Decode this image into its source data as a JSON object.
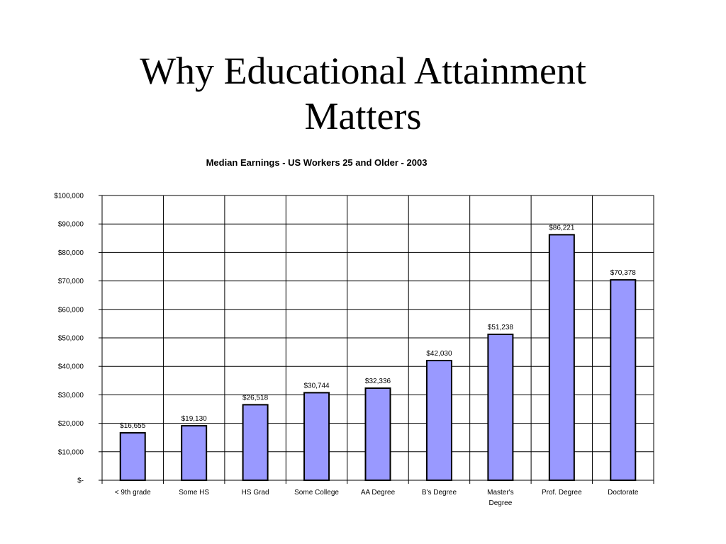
{
  "slide": {
    "title_line1": "Why Educational Attainment",
    "title_line2": "Matters"
  },
  "chart_data": {
    "type": "bar",
    "title": "Median Earnings - US Workers 25 and Older - 2003",
    "xlabel": "",
    "ylabel": "",
    "categories": [
      "< 9th grade",
      "Some HS",
      "HS Grad",
      "Some College",
      "AA Degree",
      "B's Degree",
      "Master's Degree",
      "Prof. Degree",
      "Doctorate"
    ],
    "category_lines": [
      [
        "< 9th grade"
      ],
      [
        "Some HS"
      ],
      [
        "HS Grad"
      ],
      [
        "Some College"
      ],
      [
        "AA Degree"
      ],
      [
        "B's Degree"
      ],
      [
        "Master's",
        "Degree"
      ],
      [
        "Prof. Degree"
      ],
      [
        "Doctorate"
      ]
    ],
    "values": [
      16655,
      19130,
      26518,
      30744,
      32336,
      42030,
      51238,
      86221,
      70378
    ],
    "data_labels": [
      "$16,655",
      "$19,130",
      "$26,518",
      "$30,744",
      "$32,336",
      "$42,030",
      "$51,238",
      "$86,221",
      "$70,378"
    ],
    "ylim": [
      0,
      100000
    ],
    "yticks": [
      0,
      10000,
      20000,
      30000,
      40000,
      50000,
      60000,
      70000,
      80000,
      90000,
      100000
    ],
    "ytick_labels": [
      "$-",
      "$10,000",
      "$20,000",
      "$30,000",
      "$40,000",
      "$50,000",
      "$60,000",
      "$70,000",
      "$80,000",
      "$90,000",
      "$100,000"
    ],
    "grid": true,
    "legend": "none",
    "bar_color": "#9999FF",
    "bar_stroke": "#000000"
  }
}
